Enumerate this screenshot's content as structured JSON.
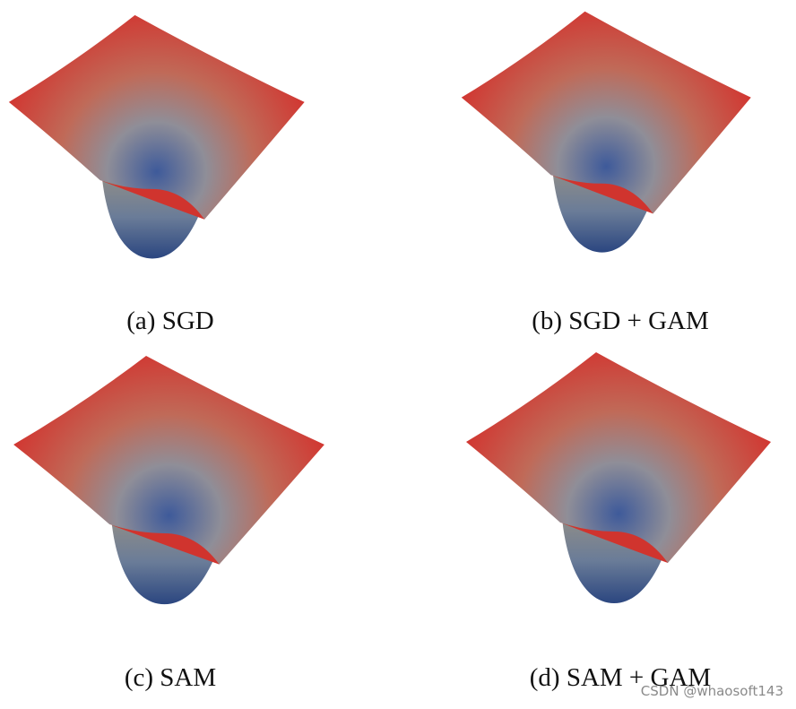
{
  "panels": [
    {
      "caption": "(a) SGD"
    },
    {
      "caption": "(b) SGD + GAM"
    },
    {
      "caption": "(c) SAM"
    },
    {
      "caption": "(d) SAM + GAM"
    }
  ],
  "watermark": "CSDN @whaosoft143"
}
